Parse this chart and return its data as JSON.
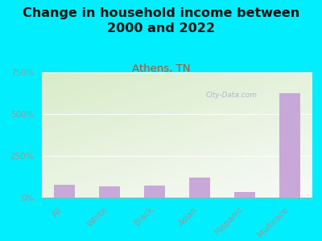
{
  "title": "Change in household income between\n2000 and 2022",
  "subtitle": "Athens, TN",
  "categories": [
    "All",
    "White",
    "Black",
    "Asian",
    "Hispanic",
    "Multirace"
  ],
  "values": [
    75,
    65,
    70,
    120,
    35,
    625
  ],
  "bar_color": "#c8a8d8",
  "title_fontsize": 11.5,
  "subtitle_fontsize": 9.5,
  "subtitle_color": "#aa5533",
  "bg_outer": "#00eeff",
  "bg_plot_topleft": "#d8ecc8",
  "bg_plot_bottomright": "#f8faf8",
  "ylim": [
    0,
    750
  ],
  "yticks": [
    0,
    250,
    500,
    750
  ],
  "ytick_labels": [
    "0%",
    "250%",
    "500%",
    "750%"
  ],
  "watermark": "City-Data.com",
  "watermark_color": "#aab8cc",
  "axis_color": "#aaaaaa",
  "tick_label_color": "#999999"
}
